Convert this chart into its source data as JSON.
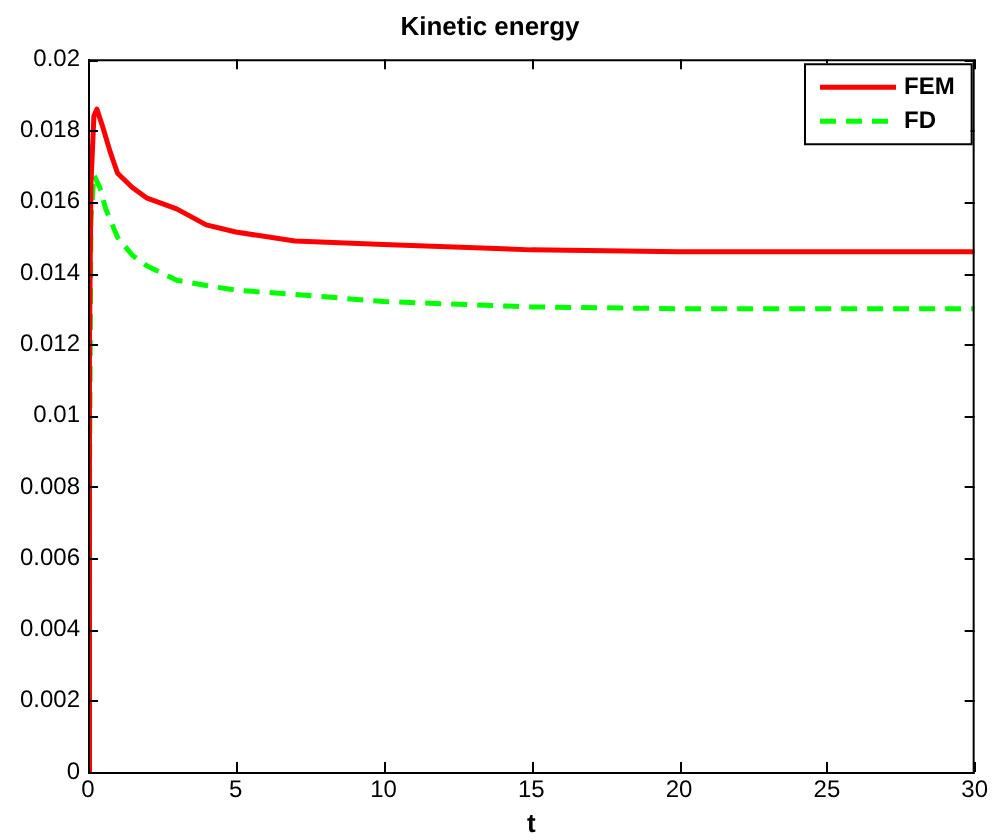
{
  "chart_data": {
    "type": "line",
    "title": "Kinetic energy",
    "xlabel": "t",
    "xlim": [
      0,
      30
    ],
    "xticks": [
      0,
      5,
      10,
      15,
      20,
      25,
      30
    ],
    "ylim": [
      0,
      0.02
    ],
    "yticks": [
      0,
      0.002,
      0.004,
      0.006,
      0.008,
      0.01,
      0.012,
      0.014,
      0.016,
      0.018,
      0.02
    ],
    "grid": false,
    "legend": "top right",
    "marker": "none",
    "series": [
      {
        "name": "FEM",
        "color": "#ff0000",
        "line_style": "solid",
        "x": [
          0,
          0.05,
          0.1,
          0.2,
          0.3,
          0.5,
          0.75,
          1,
          1.5,
          2,
          3,
          4,
          5,
          7,
          10,
          15,
          20,
          25,
          30
        ],
        "values": [
          0,
          0.012,
          0.0165,
          0.0184,
          0.0186,
          0.0181,
          0.0174,
          0.0168,
          0.0164,
          0.0161,
          0.0158,
          0.01535,
          0.01515,
          0.0149,
          0.0148,
          0.01465,
          0.0146,
          0.0146,
          0.0146
        ]
      },
      {
        "name": "FD",
        "color": "#00ff00",
        "line_style": "dashed",
        "x": [
          0,
          0.1,
          0.2,
          0.4,
          0.6,
          1,
          1.5,
          2,
          3,
          4,
          5,
          7,
          10,
          15,
          20,
          30
        ],
        "values": [
          0,
          0.0155,
          0.01675,
          0.0164,
          0.0158,
          0.015,
          0.0145,
          0.0142,
          0.0138,
          0.01365,
          0.01352,
          0.0134,
          0.0132,
          0.01305,
          0.013,
          0.013
        ]
      }
    ]
  }
}
